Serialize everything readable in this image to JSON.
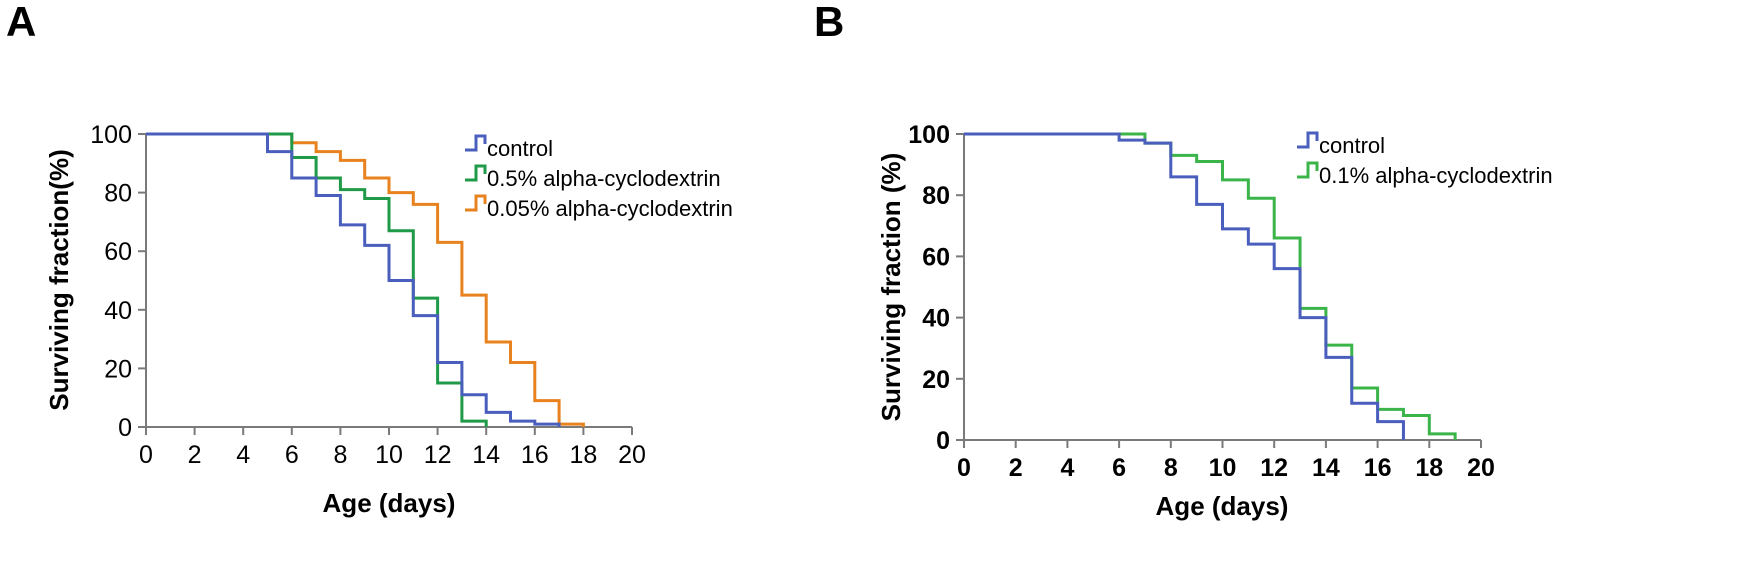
{
  "chart_data": [
    {
      "panel_label": "A",
      "type": "line",
      "step": true,
      "xlabel": "Age (days)",
      "ylabel": "Surviving fraction(%)",
      "xlim": [
        0,
        20
      ],
      "ylim": [
        0,
        100
      ],
      "xticks": [
        0,
        2,
        4,
        6,
        8,
        10,
        12,
        14,
        16,
        18,
        20
      ],
      "yticks": [
        0,
        20,
        40,
        60,
        80,
        100
      ],
      "legend_position": "top-right",
      "series": [
        {
          "name": "control",
          "color": "#4a5fbd",
          "x": [
            0,
            5,
            6,
            7,
            8,
            9,
            10,
            11,
            12,
            13,
            14,
            15,
            16,
            17
          ],
          "y": [
            100,
            94,
            85,
            79,
            69,
            62,
            50,
            38,
            22,
            11,
            5,
            2,
            1,
            0
          ]
        },
        {
          "name": "0.5% alpha-cyclodextrin",
          "color": "#1f9a48",
          "x": [
            0,
            6,
            7,
            8,
            9,
            10,
            11,
            12,
            13,
            14
          ],
          "y": [
            100,
            92,
            85,
            81,
            78,
            67,
            44,
            15,
            2,
            0
          ]
        },
        {
          "name": "0.05% alpha-cyclodextrin",
          "color": "#e8821e",
          "x": [
            0,
            6,
            7,
            8,
            9,
            10,
            11,
            12,
            13,
            14,
            15,
            16,
            17,
            18
          ],
          "y": [
            100,
            97,
            94,
            91,
            85,
            80,
            76,
            63,
            45,
            29,
            22,
            9,
            1,
            0
          ]
        }
      ]
    },
    {
      "panel_label": "B",
      "type": "line",
      "step": true,
      "xlabel": "Age (days)",
      "ylabel": "Surviving fraction (%)",
      "xlim": [
        0,
        20
      ],
      "ylim": [
        0,
        100
      ],
      "xticks": [
        0,
        2,
        4,
        6,
        8,
        10,
        12,
        14,
        16,
        18,
        20
      ],
      "yticks": [
        0,
        20,
        40,
        60,
        80,
        100
      ],
      "legend_position": "top-right",
      "series": [
        {
          "name": "control",
          "color": "#4a5fbd",
          "x": [
            0,
            6,
            7,
            8,
            9,
            10,
            11,
            12,
            13,
            14,
            15,
            16,
            17
          ],
          "y": [
            100,
            98,
            97,
            86,
            77,
            69,
            64,
            56,
            40,
            27,
            12,
            6,
            0
          ]
        },
        {
          "name": "0.1% alpha-cyclodextrin",
          "color": "#3bb54a",
          "x": [
            0,
            7,
            8,
            9,
            10,
            11,
            12,
            13,
            14,
            15,
            16,
            17,
            18,
            19
          ],
          "y": [
            100,
            97,
            93,
            91,
            85,
            79,
            66,
            43,
            31,
            17,
            10,
            8,
            2,
            0
          ]
        }
      ]
    }
  ]
}
